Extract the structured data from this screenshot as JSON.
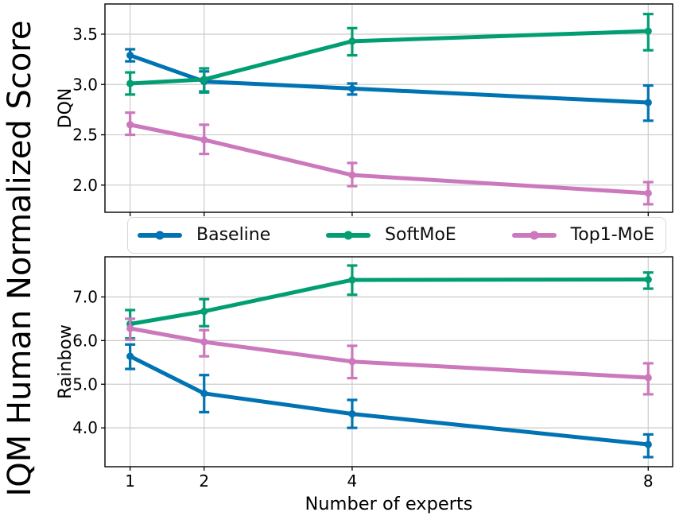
{
  "figure": {
    "ylabel_main": "IQM Human Normalized Score",
    "xlabel": "Number of experts",
    "background": "#ffffff",
    "grid_color": "#cccccc",
    "axis_color": "#000000"
  },
  "legend": {
    "items": [
      {
        "label": "Baseline",
        "color": "#0173b2"
      },
      {
        "label": "SoftMoE",
        "color": "#029e73"
      },
      {
        "label": "Top1-MoE",
        "color": "#cc78bc"
      }
    ]
  },
  "chart_data": [
    {
      "type": "line",
      "panel_label": "DQN",
      "x": [
        1,
        2,
        4,
        8
      ],
      "xticks": [
        1,
        2,
        4,
        8
      ],
      "xtick_labels": [
        "1",
        "2",
        "4",
        "8"
      ],
      "xlim": [
        0.66,
        8.33
      ],
      "ylim": [
        1.73,
        3.8
      ],
      "yticks": [
        2.0,
        2.5,
        3.0,
        3.5
      ],
      "ytick_labels": [
        "2.0",
        "2.5",
        "3.0",
        "3.5"
      ],
      "grid": true,
      "series": [
        {
          "name": "Baseline",
          "color": "#0173b2",
          "values": [
            3.29,
            3.03,
            2.96,
            2.82
          ],
          "err_lo": [
            3.23,
            2.93,
            2.9,
            2.64
          ],
          "err_hi": [
            3.35,
            3.13,
            3.01,
            2.99
          ]
        },
        {
          "name": "SoftMoE",
          "color": "#029e73",
          "values": [
            3.01,
            3.05,
            3.43,
            3.53
          ],
          "err_lo": [
            2.9,
            2.92,
            3.29,
            3.34
          ],
          "err_hi": [
            3.12,
            3.16,
            3.56,
            3.7
          ]
        },
        {
          "name": "Top1-MoE",
          "color": "#cc78bc",
          "values": [
            2.6,
            2.45,
            2.1,
            1.92
          ],
          "err_lo": [
            2.5,
            2.31,
            1.99,
            1.81
          ],
          "err_hi": [
            2.72,
            2.6,
            2.22,
            2.03
          ]
        }
      ]
    },
    {
      "type": "line",
      "panel_label": "Rainbow",
      "x": [
        1,
        2,
        4,
        8
      ],
      "xticks": [
        1,
        2,
        4,
        8
      ],
      "xtick_labels": [
        "1",
        "2",
        "4",
        "8"
      ],
      "xlim": [
        0.66,
        8.33
      ],
      "ylim": [
        3.11,
        7.92
      ],
      "yticks": [
        4.0,
        5.0,
        6.0,
        7.0
      ],
      "ytick_labels": [
        "4.0",
        "5.0",
        "6.0",
        "7.0"
      ],
      "grid": true,
      "series": [
        {
          "name": "Baseline",
          "color": "#0173b2",
          "values": [
            5.64,
            4.79,
            4.32,
            3.62
          ],
          "err_lo": [
            5.35,
            4.36,
            4.0,
            3.33
          ],
          "err_hi": [
            5.91,
            5.21,
            4.64,
            3.85
          ]
        },
        {
          "name": "SoftMoE",
          "color": "#029e73",
          "values": [
            6.38,
            6.67,
            7.39,
            7.4
          ],
          "err_lo": [
            6.05,
            6.33,
            7.05,
            7.19
          ],
          "err_hi": [
            6.7,
            6.95,
            7.72,
            7.56
          ]
        },
        {
          "name": "Top1-MoE",
          "color": "#cc78bc",
          "values": [
            6.28,
            5.97,
            5.52,
            5.15
          ],
          "err_lo": [
            6.02,
            5.64,
            5.14,
            4.77
          ],
          "err_hi": [
            6.5,
            6.24,
            5.88,
            5.48
          ]
        }
      ]
    }
  ]
}
